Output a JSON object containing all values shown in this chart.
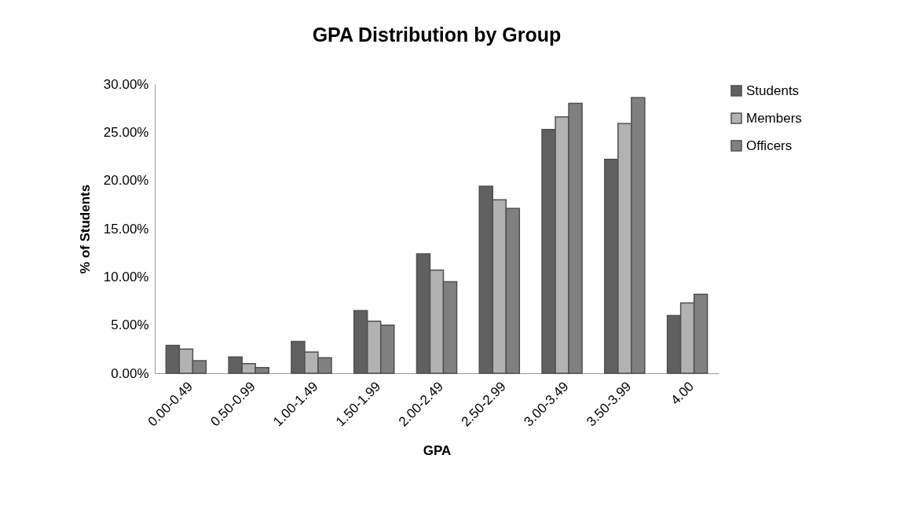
{
  "chart_data": {
    "type": "bar",
    "title": "GPA Distribution by Group",
    "xlabel": "GPA",
    "ylabel": "% of Students",
    "categories": [
      "0.00-0.49",
      "0.50-0.99",
      "1.00-1.49",
      "1.50-1.99",
      "2.00-2.49",
      "2.50-2.99",
      "3.00-3.49",
      "3.50-3.99",
      "4.00"
    ],
    "series": [
      {
        "name": "Students",
        "color": "#606060",
        "values": [
          2.9,
          1.7,
          3.3,
          6.5,
          12.4,
          19.4,
          25.3,
          22.2,
          6.0
        ]
      },
      {
        "name": "Members",
        "color": "#b2b2b2",
        "values": [
          2.5,
          1.0,
          2.2,
          5.4,
          10.7,
          18.0,
          26.6,
          25.9,
          7.3
        ]
      },
      {
        "name": "Officers",
        "color": "#808080",
        "values": [
          1.3,
          0.6,
          1.6,
          5.0,
          9.5,
          17.1,
          28.0,
          28.6,
          8.2
        ]
      }
    ],
    "ylim": [
      0,
      30
    ],
    "yticks": [
      {
        "value": 0,
        "label": "0.00%"
      },
      {
        "value": 5,
        "label": "5.00%"
      },
      {
        "value": 10,
        "label": "10.00%"
      },
      {
        "value": 15,
        "label": "15.00%"
      },
      {
        "value": 20,
        "label": "20.00%"
      },
      {
        "value": 25,
        "label": "25.00%"
      },
      {
        "value": 30,
        "label": "30.00%"
      }
    ],
    "grid": false,
    "legend": "right"
  }
}
